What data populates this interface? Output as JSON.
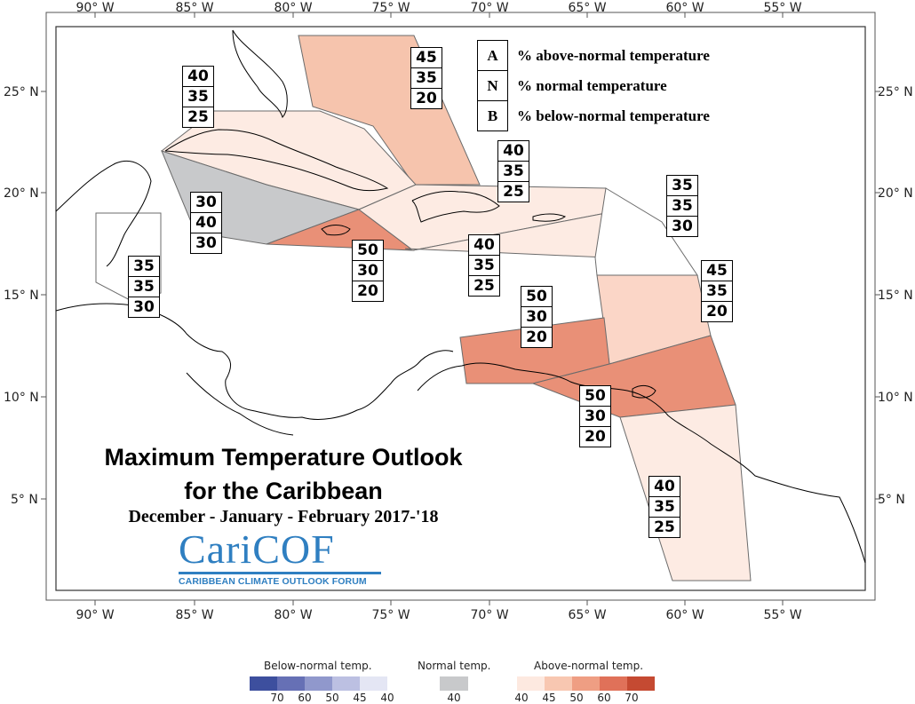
{
  "map": {
    "x_ticks": [
      "90° W",
      "85° W",
      "80° W",
      "75° W",
      "70° W",
      "65° W",
      "60° W",
      "55° W"
    ],
    "y_ticks": [
      "25° N",
      "20° N",
      "15° N",
      "10° N",
      "5° N"
    ],
    "regions": [
      {
        "id": "bahamas",
        "above": "45",
        "normal": "35",
        "below": "20",
        "color": "#f6c4ad"
      },
      {
        "id": "cuba",
        "above": "40",
        "normal": "35",
        "below": "25",
        "color": "#fdebe3"
      },
      {
        "id": "w-caribbean",
        "above": "30",
        "normal": "40",
        "below": "30",
        "color": "#c8c9cb"
      },
      {
        "id": "jamaica",
        "above": "50",
        "normal": "30",
        "below": "20",
        "color": "#e99077"
      },
      {
        "id": "hispaniola-pr",
        "above": "40",
        "normal": "35",
        "below": "25",
        "color": "#fdebe3"
      },
      {
        "id": "central-caribbean",
        "above": "40",
        "normal": "35",
        "below": "25",
        "color": "#fdebe3"
      },
      {
        "id": "leeward-n",
        "above": "35",
        "normal": "35",
        "below": "30",
        "color": "#ffffff"
      },
      {
        "id": "windward",
        "above": "45",
        "normal": "35",
        "below": "20",
        "color": "#fbd6c7"
      },
      {
        "id": "abc-islands",
        "above": "50",
        "normal": "30",
        "below": "20",
        "color": "#e99077"
      },
      {
        "id": "trinidad",
        "above": "50",
        "normal": "30",
        "below": "20",
        "color": "#e99077"
      },
      {
        "id": "guianas",
        "above": "40",
        "normal": "35",
        "below": "25",
        "color": "#fdebe3"
      },
      {
        "id": "belize",
        "above": "35",
        "normal": "35",
        "below": "30",
        "color": "#ffffff"
      }
    ]
  },
  "legend": {
    "a_key": "A",
    "a_desc": "% above-normal temperature",
    "n_key": "N",
    "n_desc": "% normal temperature",
    "b_key": "B",
    "b_desc": "% below-normal temperature"
  },
  "title": {
    "line1": "Maximum Temperature Outlook",
    "line2": "for the Caribbean",
    "season": "December - January - February 2017-'18"
  },
  "logo": {
    "name": "CariCOF",
    "subtitle": "CARIBBEAN CLIMATE OUTLOOK FORUM"
  },
  "colorbar": {
    "below_title": "Below-normal temp.",
    "normal_title": "Normal temp.",
    "above_title": "Above-normal temp.",
    "below_ticks": [
      "70",
      "60",
      "50",
      "45",
      "40"
    ],
    "normal_ticks": [
      "40"
    ],
    "above_ticks": [
      "40",
      "45",
      "50",
      "60",
      "70"
    ],
    "below_colors": [
      "#3d4f9e",
      "#6670b5",
      "#9098cc",
      "#bcc0e2",
      "#e4e6f4"
    ],
    "normal_color": "#c8c9cb",
    "above_colors": [
      "#fde9e0",
      "#f8c7b1",
      "#ef9e83",
      "#e07159",
      "#c54a32"
    ]
  }
}
